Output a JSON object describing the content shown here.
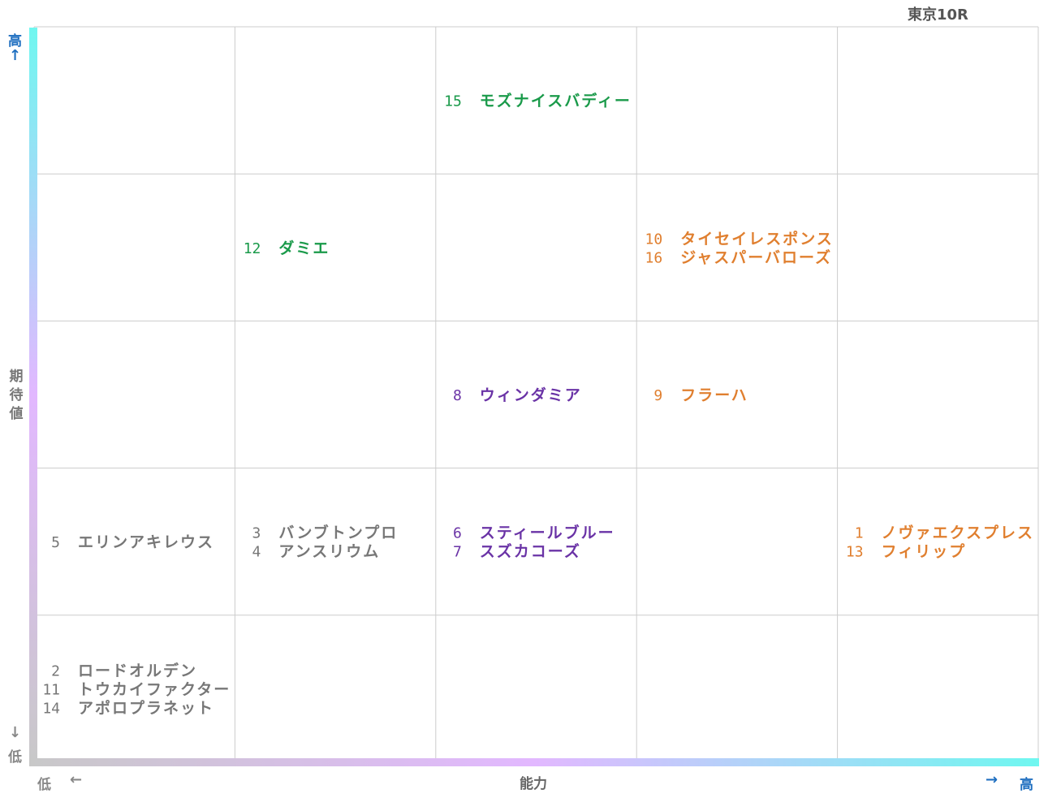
{
  "race": "東京10R",
  "axes": {
    "y_title_chars": [
      "期",
      "待",
      "値"
    ],
    "y_high": "高",
    "y_high_arrow": "↑",
    "y_low": "低",
    "y_low_arrow": "↓",
    "x_title": "能力",
    "x_low": "低",
    "x_low_arrow": "←",
    "x_high": "高",
    "x_high_arrow": "→"
  },
  "colors": {
    "green": "#1a9a4a",
    "orange": "#e07f2f",
    "purple": "#6a33a6",
    "gray": "#777777",
    "grid": "#cccccc",
    "axis_gradient": [
      "#c8c8c8",
      "#e2b8ff",
      "#6ff7f0"
    ]
  },
  "chart_data": {
    "type": "table",
    "x_levels": 5,
    "y_levels": 5,
    "cells": [
      {
        "col": 3,
        "row": 5,
        "color": "green",
        "horses": [
          {
            "num": "15",
            "name": "モズナイスバディー"
          }
        ]
      },
      {
        "col": 2,
        "row": 4,
        "color": "green",
        "horses": [
          {
            "num": "12",
            "name": "ダミエ"
          }
        ]
      },
      {
        "col": 4,
        "row": 4,
        "color": "orange",
        "horses": [
          {
            "num": "10",
            "name": "タイセイレスポンス"
          },
          {
            "num": "16",
            "name": "ジャスパーバローズ"
          }
        ]
      },
      {
        "col": 3,
        "row": 3,
        "color": "purple",
        "horses": [
          {
            "num": "8",
            "name": "ウィンダミア"
          }
        ]
      },
      {
        "col": 4,
        "row": 3,
        "color": "orange",
        "horses": [
          {
            "num": "9",
            "name": "フラーハ"
          }
        ]
      },
      {
        "col": 1,
        "row": 2,
        "color": "gray",
        "horses": [
          {
            "num": "5",
            "name": "エリンアキレウス"
          }
        ]
      },
      {
        "col": 2,
        "row": 2,
        "color": "gray",
        "horses": [
          {
            "num": "3",
            "name": "バンブトンプロ"
          },
          {
            "num": "4",
            "name": "アンスリウム"
          }
        ]
      },
      {
        "col": 3,
        "row": 2,
        "color": "purple",
        "horses": [
          {
            "num": "6",
            "name": "スティールブルー"
          },
          {
            "num": "7",
            "name": "スズカコーズ"
          }
        ]
      },
      {
        "col": 5,
        "row": 2,
        "color": "orange",
        "horses": [
          {
            "num": "1",
            "name": "ノヴァエクスプレス"
          },
          {
            "num": "13",
            "name": "フィリップ"
          }
        ]
      },
      {
        "col": 1,
        "row": 1,
        "color": "gray",
        "horses": [
          {
            "num": "2",
            "name": "ロードオルデン"
          },
          {
            "num": "11",
            "name": "トウカイファクター"
          },
          {
            "num": "14",
            "name": "アポロプラネット"
          }
        ]
      }
    ]
  }
}
